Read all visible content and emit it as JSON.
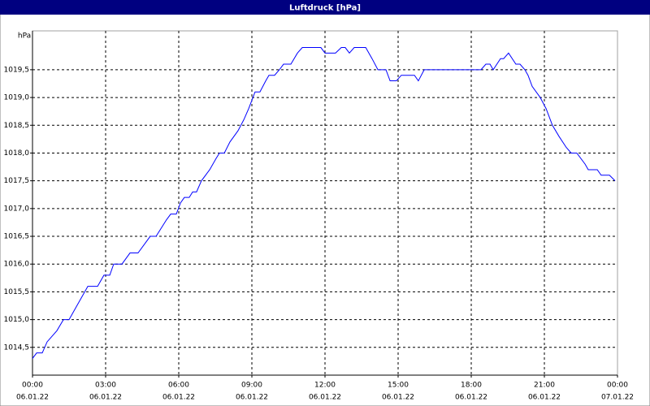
{
  "chart_data": {
    "type": "line",
    "title": "Luftdruck [hPa]",
    "y_label": "hPa",
    "xlim": [
      0,
      24
    ],
    "ylim": [
      1014,
      1020.2
    ],
    "xticks": [
      {
        "value": 0,
        "label": "00:00"
      },
      {
        "value": 3,
        "label": "03:00"
      },
      {
        "value": 6,
        "label": "06:00"
      },
      {
        "value": 9,
        "label": "09:00"
      },
      {
        "value": 12,
        "label": "12:00"
      },
      {
        "value": 15,
        "label": "15:00"
      },
      {
        "value": 18,
        "label": "18:00"
      },
      {
        "value": 21,
        "label": "21:00"
      },
      {
        "value": 24,
        "label": "00:00"
      }
    ],
    "xtick_dates": [
      "06.01.22",
      "06.01.22",
      "06.01.22",
      "06.01.22",
      "06.01.22",
      "06.01.22",
      "06.01.22",
      "06.01.22",
      "07.01.22"
    ],
    "yticks": [
      {
        "value": 1014.5,
        "label": "1014,5"
      },
      {
        "value": 1015,
        "label": "1015,0"
      },
      {
        "value": 1015.5,
        "label": "1015,5"
      },
      {
        "value": 1016,
        "label": "1016,0"
      },
      {
        "value": 1016.5,
        "label": "1016,5"
      },
      {
        "value": 1017,
        "label": "1017,0"
      },
      {
        "value": 1017.5,
        "label": "1017,5"
      },
      {
        "value": 1018,
        "label": "1018,0"
      },
      {
        "value": 1018.5,
        "label": "1018,5"
      },
      {
        "value": 1019,
        "label": "1019,0"
      },
      {
        "value": 1019.5,
        "label": "1019,5"
      }
    ],
    "grid": true,
    "series": [
      {
        "name": "Luftdruck",
        "color": "#0000ff",
        "x": [
          0,
          0.17,
          0.4,
          0.6,
          1.0,
          1.27,
          1.5,
          2.27,
          2.67,
          2.93,
          3.17,
          3.33,
          3.67,
          4.0,
          4.33,
          4.83,
          5.07,
          5.5,
          5.67,
          5.9,
          6.07,
          6.23,
          6.43,
          6.57,
          6.73,
          6.93,
          7.27,
          7.53,
          7.67,
          7.87,
          8.1,
          8.43,
          8.67,
          8.87,
          9.13,
          9.33,
          9.57,
          9.7,
          9.93,
          10.13,
          10.3,
          10.6,
          10.87,
          11.07,
          11.83,
          12.0,
          12.43,
          12.67,
          12.83,
          13.0,
          13.2,
          13.67,
          13.93,
          14.17,
          14.5,
          14.67,
          14.93,
          15.13,
          15.67,
          15.83,
          16.07,
          18.4,
          18.6,
          18.77,
          18.9,
          19.2,
          19.33,
          19.53,
          19.83,
          20.0,
          20.2,
          20.33,
          20.5,
          20.83,
          21.07,
          21.33,
          21.6,
          21.9,
          22.1,
          22.33,
          22.67,
          22.8,
          23.17,
          23.33,
          23.67,
          23.9
        ],
        "values": [
          1014.3,
          1014.4,
          1014.4,
          1014.6,
          1014.8,
          1015.0,
          1015.0,
          1015.6,
          1015.6,
          1015.8,
          1015.8,
          1016.0,
          1016.0,
          1016.2,
          1016.2,
          1016.5,
          1016.5,
          1016.8,
          1016.9,
          1016.9,
          1017.1,
          1017.2,
          1017.2,
          1017.3,
          1017.3,
          1017.5,
          1017.7,
          1017.9,
          1018.0,
          1018.0,
          1018.2,
          1018.4,
          1018.6,
          1018.8,
          1019.1,
          1019.1,
          1019.3,
          1019.4,
          1019.4,
          1019.5,
          1019.6,
          1019.6,
          1019.8,
          1019.9,
          1019.9,
          1019.8,
          1019.8,
          1019.9,
          1019.9,
          1019.8,
          1019.9,
          1019.9,
          1019.7,
          1019.5,
          1019.5,
          1019.3,
          1019.3,
          1019.4,
          1019.4,
          1019.3,
          1019.5,
          1019.5,
          1019.6,
          1019.6,
          1019.5,
          1019.7,
          1019.7,
          1019.8,
          1019.6,
          1019.6,
          1019.5,
          1019.4,
          1019.2,
          1019.0,
          1018.8,
          1018.5,
          1018.3,
          1018.1,
          1018.0,
          1018.0,
          1017.8,
          1017.7,
          1017.7,
          1017.6,
          1017.6,
          1017.5
        ]
      }
    ]
  }
}
